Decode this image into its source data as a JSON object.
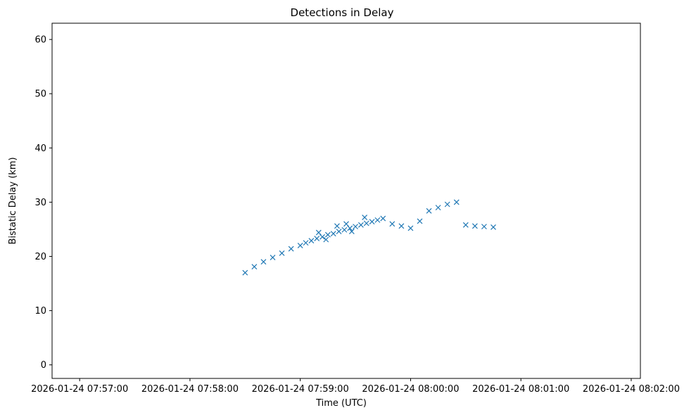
{
  "chart_data": {
    "type": "scatter",
    "title": "Detections in Delay",
    "xlabel": "Time (UTC)",
    "ylabel": "Bistatic Delay (km)",
    "marker": "x",
    "color": "#1f77b4",
    "grid": false,
    "xlim": [
      "2026-01-24 07:56:45",
      "2026-01-24 08:02:05"
    ],
    "ylim": [
      -2.5,
      63
    ],
    "x_ticks": [
      "2026-01-24 07:57:00",
      "2026-01-24 07:58:00",
      "2026-01-24 07:59:00",
      "2026-01-24 08:00:00",
      "2026-01-24 08:01:00",
      "2026-01-24 08:02:00"
    ],
    "y_ticks": [
      0,
      10,
      20,
      30,
      40,
      50,
      60
    ],
    "series": [
      {
        "points": [
          [
            "2026-01-24 07:59:00",
            22.0
          ],
          [
            "2026-01-24 07:59:03",
            22.5
          ],
          [
            "2026-01-24 07:59:06",
            22.9
          ],
          [
            "2026-01-24 07:59:09",
            23.3
          ],
          [
            "2026-01-24 07:59:12",
            23.6
          ],
          [
            "2026-01-24 07:59:15",
            24.0
          ],
          [
            "2026-01-24 07:59:18",
            24.2
          ],
          [
            "2026-01-24 07:59:21",
            24.6
          ],
          [
            "2026-01-24 07:59:24",
            24.9
          ],
          [
            "2026-01-24 07:59:27",
            25.2
          ],
          [
            "2026-01-24 07:59:30",
            25.5
          ],
          [
            "2026-01-24 07:59:33",
            25.8
          ],
          [
            "2026-01-24 07:59:36",
            26.1
          ],
          [
            "2026-01-24 07:59:39",
            26.4
          ],
          [
            "2026-01-24 07:59:42",
            26.7
          ],
          [
            "2026-01-24 07:59:45",
            27.0
          ],
          [
            "2026-01-24 07:59:10",
            24.4
          ],
          [
            "2026-01-24 07:59:20",
            25.6
          ],
          [
            "2026-01-24 07:59:25",
            26.0
          ],
          [
            "2026-01-24 07:59:35",
            27.2
          ],
          [
            "2026-01-24 07:59:14",
            23.1
          ],
          [
            "2026-01-24 07:59:28",
            24.6
          ],
          [
            "2026-01-24 07:58:55",
            21.4
          ],
          [
            "2026-01-24 07:58:50",
            20.6
          ],
          [
            "2026-01-24 07:58:45",
            19.8
          ],
          [
            "2026-01-24 07:58:40",
            19.0
          ],
          [
            "2026-01-24 07:58:35",
            18.1
          ],
          [
            "2026-01-24 07:58:30",
            17.0
          ],
          [
            "2026-01-24 07:59:50",
            26.0
          ],
          [
            "2026-01-24 07:59:55",
            25.6
          ],
          [
            "2026-01-24 08:00:00",
            25.2
          ],
          [
            "2026-01-24 08:00:05",
            26.5
          ],
          [
            "2026-01-24 08:00:10",
            28.4
          ],
          [
            "2026-01-24 08:00:15",
            29.0
          ],
          [
            "2026-01-24 08:00:20",
            29.6
          ],
          [
            "2026-01-24 08:00:25",
            30.0
          ],
          [
            "2026-01-24 08:00:30",
            25.8
          ],
          [
            "2026-01-24 08:00:35",
            25.6
          ],
          [
            "2026-01-24 08:00:40",
            25.5
          ],
          [
            "2026-01-24 08:00:45",
            25.4
          ]
        ]
      }
    ]
  }
}
